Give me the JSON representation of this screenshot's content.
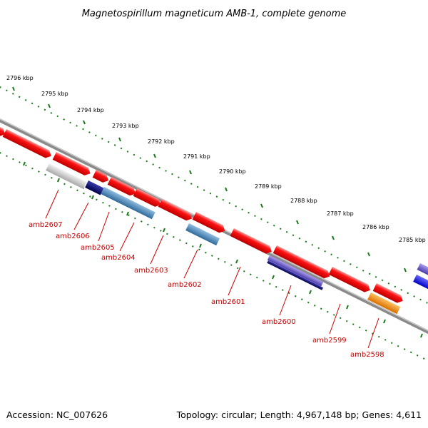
{
  "title": "Magnetospirillum magneticum AMB-1, complete genome",
  "footer": {
    "accession": "Accession: NC_007626",
    "topology": "Topology: circular; Length: 4,967,148 bp; Genes: 4,611"
  },
  "colors": {
    "forward_gene": "#ff0000",
    "backbone": "#808080",
    "ticks": "#1a7a1a",
    "label": "#cc0000",
    "navy_feature": "#00007a",
    "steelblue_feature": "#4682b4",
    "slateblue_feature": "#6a5acd",
    "gray_feature": "#b8b8b8",
    "orange_feature": "#ff8c00",
    "blue_feature": "#0000ff"
  },
  "tick_labels": [
    "2796 kbp",
    "2795 kbp",
    "2794 kbp",
    "2793 kbp",
    "2792 kbp",
    "2791 kbp",
    "2790 kbp",
    "2789 kbp",
    "2788 kbp",
    "2787 kbp",
    "2786 kbp",
    "2785 kbp"
  ],
  "gene_labels": [
    "amb2607",
    "amb2606",
    "amb2605",
    "amb2604",
    "amb2603",
    "amb2602",
    "amb2601",
    "amb2600",
    "amb2599",
    "amb2598"
  ]
}
